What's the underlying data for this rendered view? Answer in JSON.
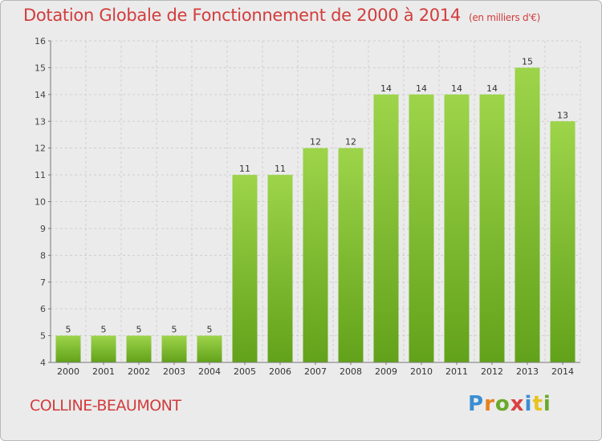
{
  "title": "Dotation Globale de Fonctionnement de 2000 à 2014",
  "subtitle": "(en milliers d'€)",
  "city": "COLLINE-BEAUMONT",
  "logo": {
    "text": "Proxiti",
    "colors": [
      "#3a8ed4",
      "#e8801e",
      "#6aaa2a",
      "#d94040",
      "#3a8ed4",
      "#e8c21e",
      "#6aaa2a"
    ]
  },
  "colors": {
    "bar_top": "#9dd44a",
    "bar_bottom": "#62a21a",
    "title": "#d23c3c",
    "grid": "#cfcfcf",
    "axis": "#777777"
  },
  "chart_data": {
    "type": "bar",
    "categories": [
      "2000",
      "2001",
      "2002",
      "2003",
      "2004",
      "2005",
      "2006",
      "2007",
      "2008",
      "2009",
      "2010",
      "2011",
      "2012",
      "2013",
      "2014"
    ],
    "values": [
      5,
      5,
      5,
      5,
      5,
      11,
      11,
      12,
      12,
      14,
      14,
      14,
      14,
      15,
      13
    ],
    "ylim": [
      4,
      16
    ],
    "yticks": [
      4,
      5,
      6,
      7,
      8,
      9,
      10,
      11,
      12,
      13,
      14,
      15,
      16
    ],
    "grid": true,
    "data_labels": true
  }
}
